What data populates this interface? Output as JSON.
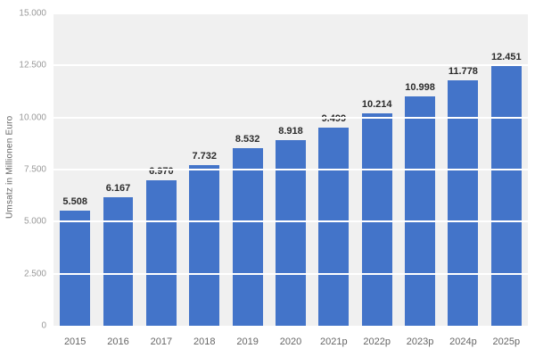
{
  "chart_data": {
    "type": "bar",
    "title": "",
    "xlabel": "",
    "ylabel": "Umsatz in Millionen Euro",
    "ylim": [
      0,
      15000
    ],
    "grid": true,
    "legend_position": "none",
    "yticks": [
      0,
      2500,
      5000,
      7500,
      10000,
      12500,
      15000
    ],
    "ytick_labels": [
      "0",
      "2.500",
      "5.000",
      "7.500",
      "10.000",
      "12.500",
      "15.000"
    ],
    "categories": [
      "2015",
      "2016",
      "2017",
      "2018",
      "2019",
      "2020",
      "2021p",
      "2022p",
      "2023p",
      "2024p",
      "2025p"
    ],
    "values": [
      5508,
      6167,
      6970,
      7732,
      8532,
      8918,
      9499,
      10214,
      10998,
      11778,
      12451
    ],
    "value_labels": [
      "5.508",
      "6.167",
      "6.970",
      "7.732",
      "8.532",
      "8.918",
      "9.499",
      "10.214",
      "10.998",
      "11.778",
      "12.451"
    ],
    "colors": {
      "bar": "#4374c9",
      "plot_background": "#f0f0f0",
      "gridline": "#ffffff",
      "value_label": "#2b2b2b",
      "axis_label": "#666666",
      "tick_label": "#999999"
    }
  }
}
